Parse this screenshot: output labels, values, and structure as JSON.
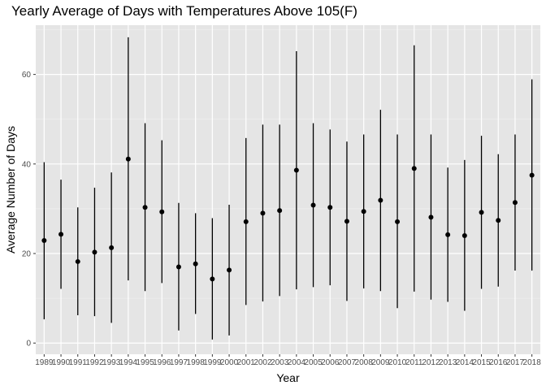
{
  "chart_data": {
    "type": "scatter",
    "title": "Yearly Average of Days with Temperatures Above 105(F)",
    "xlabel": "Year",
    "ylabel": "Average Number of Days",
    "ylim": [
      -2.5,
      71
    ],
    "y_ticks": [
      0,
      20,
      40,
      60
    ],
    "grid": "on",
    "background": "#e5e5e5",
    "point_color": "#000000",
    "categories": [
      "1989",
      "1990",
      "1991",
      "1992",
      "1993",
      "1994",
      "1995",
      "1996",
      "1997",
      "1998",
      "1999",
      "2000",
      "2001",
      "2002",
      "2003",
      "2004",
      "2005",
      "2006",
      "2007",
      "2008",
      "2009",
      "2010",
      "2011",
      "2012",
      "2013",
      "2014",
      "2015",
      "2016",
      "2017",
      "2018"
    ],
    "series": [
      {
        "values": [
          22.9,
          24.3,
          18.2,
          20.3,
          21.3,
          41.1,
          30.3,
          29.3,
          17.0,
          17.7,
          14.3,
          16.3,
          27.1,
          29.0,
          29.6,
          38.6,
          30.8,
          30.3,
          27.2,
          29.4,
          31.9,
          27.1,
          39.0,
          28.1,
          24.2,
          24.0,
          29.2,
          27.4,
          31.4,
          37.5
        ],
        "lower": [
          5.3,
          12.1,
          6.2,
          6.0,
          4.5,
          14.0,
          11.6,
          13.4,
          2.8,
          6.5,
          0.8,
          1.7,
          8.5,
          9.3,
          10.5,
          12.0,
          12.5,
          12.9,
          9.4,
          12.2,
          11.6,
          7.8,
          11.5,
          9.7,
          9.2,
          7.2,
          12.1,
          12.6,
          16.2,
          16.2
        ],
        "upper": [
          40.4,
          36.5,
          30.3,
          34.7,
          38.1,
          68.3,
          49.1,
          45.3,
          31.3,
          29.0,
          27.9,
          30.9,
          45.8,
          48.8,
          48.8,
          65.2,
          49.1,
          47.7,
          45.0,
          46.6,
          52.1,
          46.6,
          66.5,
          46.6,
          39.2,
          40.9,
          46.3,
          42.2,
          46.6,
          58.9
        ]
      }
    ]
  }
}
